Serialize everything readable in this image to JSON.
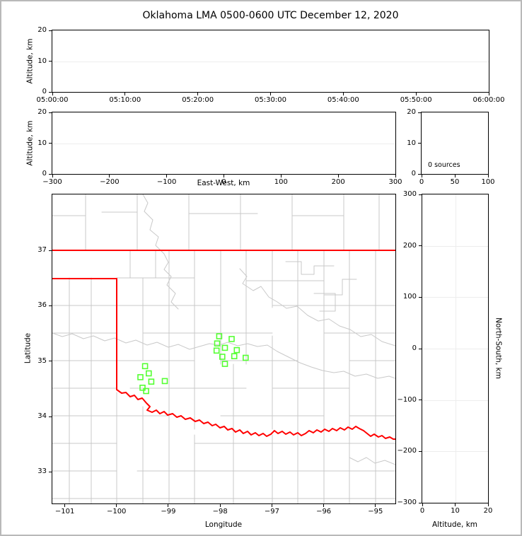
{
  "title": "Oklahoma LMA 0500-0600 UTC December 12, 2020",
  "colors": {
    "station_marker": "#55ff33",
    "state_border": "#ff0000",
    "county_lines": "#c9c9c9",
    "gridline": "#ededed",
    "spine": "#000000"
  },
  "panels": {
    "time_height": {
      "ylabel": "Altitude, km",
      "yticks": [
        "20",
        "10",
        "0"
      ],
      "xticks": [
        "05:00:00",
        "05:10:00",
        "05:20:00",
        "05:30:00",
        "05:40:00",
        "05:50:00",
        "06:00:00"
      ]
    },
    "ew_height": {
      "ylabel": "Altitude, km",
      "xlabel": "East-West, km",
      "yticks": [
        "20",
        "10",
        "0"
      ],
      "xticks": [
        "−300",
        "−200",
        "−100",
        "0",
        "100",
        "200",
        "300"
      ]
    },
    "histogram": {
      "yticks": [
        "20",
        "10",
        "0"
      ],
      "xticks": [
        "0",
        "50",
        "100"
      ],
      "annotation": "0 sources"
    },
    "map": {
      "ylabel": "Latitude",
      "xlabel": "Longitude",
      "yticks": [
        "37",
        "36",
        "35",
        "34",
        "33"
      ],
      "xticks": [
        "−101",
        "−100",
        "−99",
        "−98",
        "−97",
        "−96",
        "−95"
      ]
    },
    "ns_height": {
      "ylabel": "North-South, km",
      "xlabel": "Altitude, km",
      "yticks": [
        "300",
        "200",
        "100",
        "0",
        "−100",
        "−200",
        "−300"
      ],
      "xticks": [
        "0",
        "10",
        "20"
      ]
    }
  },
  "chart_data": [
    {
      "type": "scatter",
      "panel": "altitude-vs-time",
      "title": "Oklahoma LMA 0500-0600 UTC December 12, 2020",
      "xlabel": "",
      "ylabel": "Altitude, km",
      "x_ticks": [
        "05:00:00",
        "05:10:00",
        "05:20:00",
        "05:30:00",
        "05:40:00",
        "05:50:00",
        "06:00:00"
      ],
      "ylim": [
        0,
        20
      ],
      "grid": "horizontal line at 10 km",
      "points": []
    },
    {
      "type": "scatter",
      "panel": "altitude-vs-east-west",
      "xlabel": "East-West, km",
      "ylabel": "Altitude, km",
      "xlim": [
        -300,
        300
      ],
      "ylim": [
        0,
        20
      ],
      "grid": "horizontal line at 10 km",
      "points": []
    },
    {
      "type": "histogram",
      "panel": "source-count-vs-altitude",
      "xlim": [
        0,
        100
      ],
      "ylim": [
        0,
        20
      ],
      "annotation": "0 sources",
      "values": []
    },
    {
      "type": "scatter",
      "panel": "plan-view-map",
      "xlabel": "Longitude",
      "ylabel": "Latitude",
      "xlim": [
        -101.24,
        -94.62
      ],
      "ylim": [
        32.43,
        38.01
      ],
      "map_layers": [
        "county boundaries (gray)",
        "Oklahoma state border and Red River (red)"
      ],
      "series": [
        {
          "name": "lma-stations",
          "marker": "open-square",
          "color": "#55ff33",
          "points": [
            [
              -98.02,
              35.45
            ],
            [
              -97.78,
              35.4
            ],
            [
              -98.06,
              35.32
            ],
            [
              -97.91,
              35.24
            ],
            [
              -98.07,
              35.19
            ],
            [
              -97.68,
              35.2
            ],
            [
              -97.96,
              35.08
            ],
            [
              -97.73,
              35.09
            ],
            [
              -97.51,
              35.06
            ],
            [
              -97.91,
              34.95
            ],
            [
              -99.45,
              34.91
            ],
            [
              -99.38,
              34.78
            ],
            [
              -99.54,
              34.71
            ],
            [
              -99.33,
              34.63
            ],
            [
              -99.07,
              34.64
            ],
            [
              -99.5,
              34.52
            ],
            [
              -99.43,
              34.46
            ]
          ]
        }
      ]
    },
    {
      "type": "scatter",
      "panel": "altitude-vs-north-south",
      "xlabel": "Altitude, km",
      "ylabel": "North-South, km",
      "xlim": [
        0,
        20
      ],
      "ylim": [
        -300,
        300
      ],
      "grid": "horizontal lines every 100 km, vertical line at 10 km",
      "points": []
    }
  ]
}
